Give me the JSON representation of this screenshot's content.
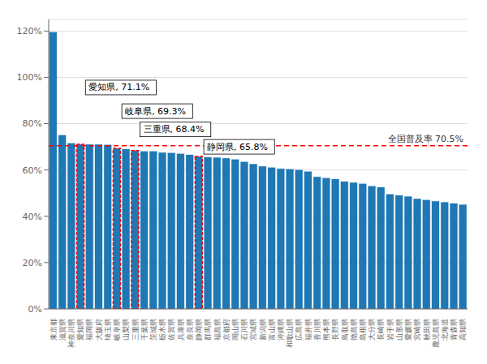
{
  "chart_data": {
    "type": "bar",
    "categories": [
      "東京都",
      "滋賀県",
      "神奈川県",
      "愛知県",
      "福岡県",
      "大阪府",
      "埼玉県",
      "岐阜県",
      "山梨県",
      "三重県",
      "千葉県",
      "茨城県",
      "栃木県",
      "佐賀県",
      "兵庫県",
      "奈良県",
      "静岡県",
      "群馬県",
      "福島県",
      "京都府",
      "岡山県",
      "石川県",
      "宮城県",
      "新潟県",
      "富山県",
      "沖縄県",
      "和歌山県",
      "広島県",
      "福井県",
      "香川県",
      "熊本県",
      "長野県",
      "鳥取県",
      "徳島県",
      "島根県",
      "大分県",
      "長崎県",
      "岩手県",
      "山形県",
      "愛媛県",
      "宮崎県",
      "秋田県",
      "鹿児島県",
      "北海道",
      "青森県",
      "高知県"
    ],
    "values": [
      119.5,
      75.0,
      71.5,
      71.1,
      71.0,
      71.0,
      70.8,
      69.3,
      69.0,
      68.4,
      68.0,
      68.0,
      67.5,
      67.3,
      67.0,
      66.5,
      65.8,
      65.5,
      65.3,
      65.0,
      64.5,
      63.5,
      62.5,
      61.5,
      61.0,
      60.5,
      60.3,
      60.0,
      59.3,
      57.0,
      56.5,
      56.0,
      55.0,
      54.5,
      54.0,
      53.0,
      52.5,
      49.5,
      49.0,
      48.5,
      47.5,
      47.0,
      46.5,
      46.0,
      45.5,
      45.0
    ],
    "color": "#1F77B4",
    "ylim": [
      0,
      125
    ],
    "yticks": [
      {
        "value": 0,
        "label": "0%"
      },
      {
        "value": 20,
        "label": "20%"
      },
      {
        "value": 40,
        "label": "40%"
      },
      {
        "value": 60,
        "label": "60%"
      },
      {
        "value": 80,
        "label": "80%"
      },
      {
        "value": 100,
        "label": "100%"
      },
      {
        "value": 120,
        "label": "120%"
      }
    ],
    "grid": true,
    "reference_line": {
      "value": 70.5,
      "label": "全国普及率  70.5%",
      "color": "#FF0000"
    },
    "annotations": [
      {
        "category": "愛知県",
        "label": "愛知県, 71.1%",
        "color": "#FF0000"
      },
      {
        "category": "岐阜県",
        "label": "岐阜県, 69.3%",
        "color": "#FF0000"
      },
      {
        "category": "三重県",
        "label": "三重県, 68.4%",
        "color": "#FF0000"
      },
      {
        "category": "静岡県",
        "label": "静岡県, 65.8%",
        "color": "#FF0000"
      }
    ]
  }
}
